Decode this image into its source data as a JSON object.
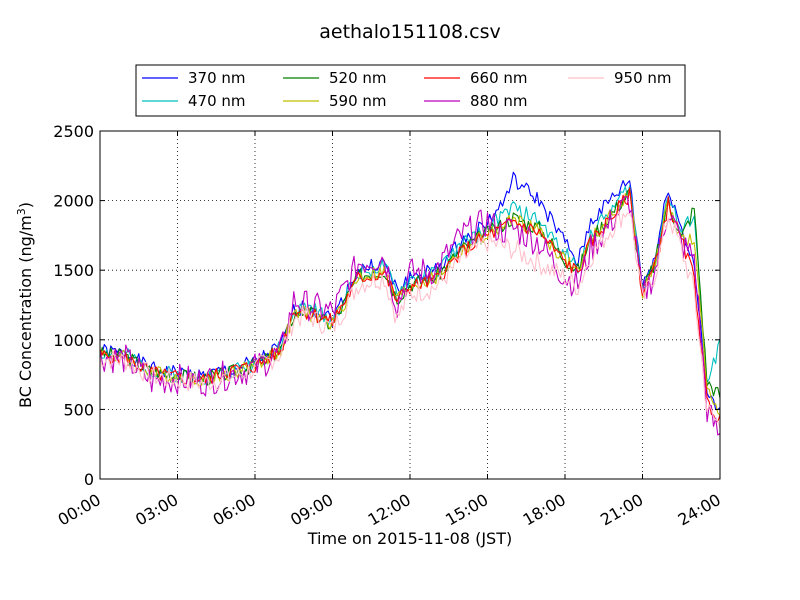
{
  "chart_data": {
    "type": "line",
    "title": "aethalo151108.csv",
    "xlabel": "Time on 2015-11-08 (JST)",
    "ylabel": "BC Concentration (ng/m",
    "ylabel_sup": "3",
    "ylabel_end": ")",
    "x_ticks": [
      "00:00",
      "03:00",
      "06:00",
      "09:00",
      "12:00",
      "15:00",
      "18:00",
      "21:00",
      "24:00"
    ],
    "xlim_hours": [
      0,
      24
    ],
    "y_ticks": [
      0,
      500,
      1000,
      1500,
      2000,
      2500
    ],
    "ylim": [
      0,
      2500
    ],
    "grid": true,
    "legend_position": "top",
    "x_hours": [
      0,
      1,
      2,
      3,
      4,
      5,
      6,
      7,
      7.5,
      8,
      9,
      10,
      11,
      11.5,
      12,
      13,
      14,
      15,
      15.5,
      16,
      17,
      18,
      18.5,
      19,
      20,
      20.5,
      21,
      21.5,
      22,
      22.5,
      23,
      23.5,
      24
    ],
    "series": [
      {
        "name": "370 nm",
        "color": "#0000ff",
        "values": [
          920,
          900,
          790,
          760,
          740,
          780,
          840,
          950,
          1200,
          1250,
          1150,
          1500,
          1550,
          1350,
          1450,
          1500,
          1700,
          1850,
          1950,
          2150,
          2000,
          1700,
          1550,
          1850,
          2050,
          2150,
          1400,
          1600,
          2100,
          1800,
          1550,
          600,
          480
        ]
      },
      {
        "name": "470 nm",
        "color": "#00bfbf",
        "values": [
          910,
          890,
          780,
          750,
          730,
          770,
          830,
          940,
          1190,
          1240,
          1140,
          1480,
          1530,
          1330,
          1430,
          1480,
          1680,
          1800,
          1880,
          1950,
          1850,
          1620,
          1520,
          1760,
          1980,
          2100,
          1380,
          1580,
          2050,
          1760,
          1900,
          650,
          1000
        ]
      },
      {
        "name": "520 nm",
        "color": "#008000",
        "values": [
          900,
          880,
          770,
          740,
          720,
          760,
          820,
          930,
          1180,
          1210,
          1100,
          1460,
          1500,
          1300,
          1400,
          1450,
          1650,
          1770,
          1820,
          1880,
          1800,
          1580,
          1500,
          1720,
          1950,
          2060,
          1350,
          1560,
          2000,
          1730,
          1950,
          700,
          600
        ]
      },
      {
        "name": "590 nm",
        "color": "#bfbf00",
        "values": [
          895,
          875,
          765,
          735,
          715,
          755,
          815,
          925,
          1175,
          1200,
          1110,
          1450,
          1490,
          1290,
          1390,
          1440,
          1640,
          1760,
          1800,
          1860,
          1780,
          1570,
          1490,
          1710,
          1940,
          2050,
          1340,
          1550,
          1990,
          1720,
          1700,
          650,
          500
        ]
      },
      {
        "name": "660 nm",
        "color": "#ff0000",
        "values": [
          890,
          870,
          760,
          730,
          710,
          780,
          810,
          920,
          1220,
          1200,
          1130,
          1440,
          1480,
          1280,
          1380,
          1430,
          1630,
          1750,
          1790,
          1850,
          1770,
          1560,
          1480,
          1700,
          1930,
          2040,
          1330,
          1540,
          1980,
          1710,
          1450,
          550,
          420
        ]
      },
      {
        "name": "880 nm",
        "color": "#bf00bf",
        "values": [
          880,
          860,
          700,
          720,
          700,
          750,
          800,
          910,
          1280,
          1250,
          1200,
          1550,
          1600,
          1250,
          1480,
          1500,
          1750,
          1850,
          1780,
          1800,
          1700,
          1450,
          1400,
          1650,
          1900,
          2000,
          1300,
          1500,
          1950,
          1680,
          1600,
          500,
          300
        ]
      },
      {
        "name": "950 nm",
        "color": "#ffc0cb",
        "values": [
          870,
          850,
          740,
          710,
          690,
          730,
          790,
          900,
          1150,
          1180,
          1080,
          1400,
          1450,
          1150,
          1330,
          1380,
          1580,
          1700,
          1680,
          1650,
          1550,
          1450,
          1380,
          1600,
          1850,
          1950,
          1280,
          1480,
          1900,
          1650,
          1350,
          500,
          380
        ]
      }
    ]
  }
}
